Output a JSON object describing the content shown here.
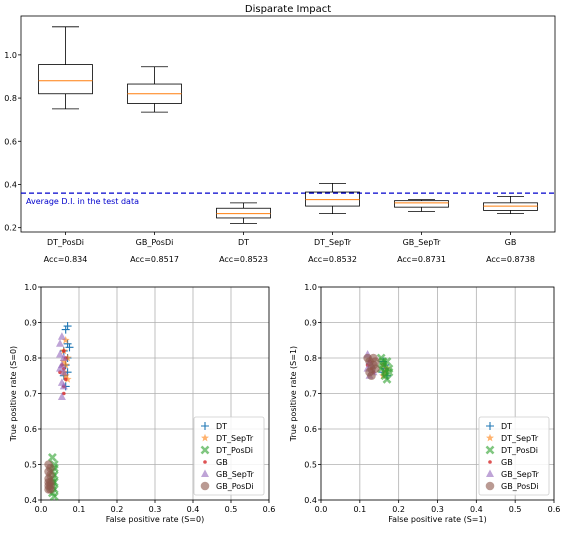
{
  "chart_data": [
    {
      "type": "box",
      "title": "Disparate Impact",
      "categories": [
        "DT_PosDi",
        "GB_PosDi",
        "DT",
        "DT_SepTr",
        "GB_SepTr",
        "GB"
      ],
      "accuracies": [
        "Acc=0.834",
        "Acc=0.8517",
        "Acc=0.8523",
        "Acc=0.8532",
        "Acc=0.8731",
        "Acc=0.8738"
      ],
      "boxes": [
        {
          "whislo": 0.75,
          "q1": 0.82,
          "med": 0.88,
          "q3": 0.955,
          "whishi": 1.13
        },
        {
          "whislo": 0.735,
          "q1": 0.775,
          "med": 0.82,
          "q3": 0.865,
          "whishi": 0.945
        },
        {
          "whislo": 0.22,
          "q1": 0.245,
          "med": 0.265,
          "q3": 0.29,
          "whishi": 0.315
        },
        {
          "whislo": 0.265,
          "q1": 0.3,
          "med": 0.33,
          "q3": 0.365,
          "whishi": 0.405
        },
        {
          "whislo": 0.275,
          "q1": 0.295,
          "med": 0.315,
          "q3": 0.325,
          "whishi": 0.33
        },
        {
          "whislo": 0.265,
          "q1": 0.28,
          "med": 0.3,
          "q3": 0.315,
          "whishi": 0.345
        }
      ],
      "reference_line": {
        "value": 0.36,
        "label": "Average D.I. in the test data",
        "color": "#0000cc"
      },
      "yticks": [
        "0.2",
        "0.4",
        "0.6",
        "0.8",
        "1.0"
      ],
      "ylim": [
        0.18,
        1.18
      ],
      "median_color": "#ff7f0e"
    },
    {
      "type": "scatter",
      "xlabel": "False positive rate (S=0)",
      "ylabel": "True positive rate (S=0)",
      "xlim": [
        0.0,
        0.6
      ],
      "ylim": [
        0.4,
        1.0
      ],
      "xticks": [
        "0.0",
        "0.1",
        "0.2",
        "0.3",
        "0.4",
        "0.5",
        "0.6"
      ],
      "yticks": [
        "0.4",
        "0.5",
        "0.6",
        "0.7",
        "0.8",
        "0.9",
        "1.0"
      ],
      "grid": true,
      "legend_position": "lower-right",
      "series": [
        {
          "name": "DT",
          "color": "#1f77b4",
          "marker": "plus",
          "points": [
            [
              0.07,
              0.89
            ],
            [
              0.065,
              0.88
            ],
            [
              0.075,
              0.83
            ],
            [
              0.06,
              0.82
            ],
            [
              0.07,
              0.8
            ],
            [
              0.065,
              0.78
            ],
            [
              0.07,
              0.76
            ],
            [
              0.06,
              0.75
            ],
            [
              0.065,
              0.72
            ],
            [
              0.07,
              0.84
            ]
          ]
        },
        {
          "name": "DT_SepTr",
          "color": "#ff7f0e",
          "marker": "star",
          "points": [
            [
              0.065,
              0.85
            ],
            [
              0.06,
              0.82
            ],
            [
              0.07,
              0.8
            ],
            [
              0.065,
              0.78
            ],
            [
              0.06,
              0.76
            ],
            [
              0.065,
              0.75
            ],
            [
              0.07,
              0.74
            ],
            [
              0.06,
              0.79
            ]
          ]
        },
        {
          "name": "DT_PosDi",
          "color": "#2ca02c",
          "marker": "x",
          "points": [
            [
              0.03,
              0.52
            ],
            [
              0.035,
              0.5
            ],
            [
              0.03,
              0.48
            ],
            [
              0.035,
              0.47
            ],
            [
              0.03,
              0.46
            ],
            [
              0.035,
              0.45
            ],
            [
              0.03,
              0.44
            ],
            [
              0.035,
              0.43
            ],
            [
              0.03,
              0.42
            ],
            [
              0.035,
              0.41
            ],
            [
              0.03,
              0.45
            ],
            [
              0.035,
              0.49
            ]
          ]
        },
        {
          "name": "GB",
          "color": "#d62728",
          "marker": "dot",
          "points": [
            [
              0.06,
              0.82
            ],
            [
              0.065,
              0.8
            ],
            [
              0.055,
              0.78
            ],
            [
              0.06,
              0.77
            ],
            [
              0.065,
              0.74
            ],
            [
              0.06,
              0.72
            ],
            [
              0.05,
              0.76
            ],
            [
              0.06,
              0.7
            ]
          ]
        },
        {
          "name": "GB_SepTr",
          "color": "#9467bd",
          "marker": "triangle",
          "points": [
            [
              0.055,
              0.86
            ],
            [
              0.05,
              0.84
            ],
            [
              0.06,
              0.8
            ],
            [
              0.055,
              0.78
            ],
            [
              0.05,
              0.77
            ],
            [
              0.06,
              0.76
            ],
            [
              0.055,
              0.73
            ],
            [
              0.06,
              0.72
            ],
            [
              0.055,
              0.69
            ],
            [
              0.05,
              0.81
            ]
          ]
        },
        {
          "name": "GB_PosDi",
          "color": "#8c564b",
          "marker": "circle",
          "points": [
            [
              0.02,
              0.5
            ],
            [
              0.025,
              0.49
            ],
            [
              0.02,
              0.48
            ],
            [
              0.025,
              0.47
            ],
            [
              0.02,
              0.46
            ],
            [
              0.025,
              0.45
            ],
            [
              0.02,
              0.44
            ],
            [
              0.025,
              0.44
            ],
            [
              0.02,
              0.43
            ],
            [
              0.025,
              0.43
            ],
            [
              0.02,
              0.45
            ]
          ]
        }
      ]
    },
    {
      "type": "scatter",
      "xlabel": "False positive rate (S=1)",
      "ylabel": "True positive rate (S=1)",
      "xlim": [
        0.0,
        0.6
      ],
      "ylim": [
        0.4,
        1.0
      ],
      "xticks": [
        "0.0",
        "0.1",
        "0.2",
        "0.3",
        "0.4",
        "0.5",
        "0.6"
      ],
      "yticks": [
        "0.4",
        "0.5",
        "0.6",
        "0.7",
        "0.8",
        "0.9",
        "1.0"
      ],
      "grid": true,
      "legend_position": "lower-right",
      "series": [
        {
          "name": "DT",
          "color": "#1f77b4",
          "marker": "plus",
          "points": [
            [
              0.16,
              0.79
            ],
            [
              0.165,
              0.77
            ],
            [
              0.17,
              0.75
            ],
            [
              0.16,
              0.76
            ],
            [
              0.165,
              0.78
            ]
          ]
        },
        {
          "name": "DT_SepTr",
          "color": "#ff7f0e",
          "marker": "star",
          "points": [
            [
              0.16,
              0.78
            ],
            [
              0.165,
              0.76
            ],
            [
              0.17,
              0.77
            ],
            [
              0.16,
              0.75
            ]
          ]
        },
        {
          "name": "DT_PosDi",
          "color": "#2ca02c",
          "marker": "x",
          "points": [
            [
              0.155,
              0.8
            ],
            [
              0.16,
              0.78
            ],
            [
              0.165,
              0.76
            ],
            [
              0.17,
              0.74
            ],
            [
              0.175,
              0.77
            ],
            [
              0.16,
              0.79
            ],
            [
              0.165,
              0.75
            ],
            [
              0.17,
              0.79
            ],
            [
              0.175,
              0.76
            ],
            [
              0.155,
              0.77
            ]
          ]
        },
        {
          "name": "GB",
          "color": "#d62728",
          "marker": "dot",
          "points": [
            [
              0.125,
              0.79
            ],
            [
              0.13,
              0.77
            ],
            [
              0.12,
              0.78
            ],
            [
              0.135,
              0.76
            ]
          ]
        },
        {
          "name": "GB_SepTr",
          "color": "#9467bd",
          "marker": "triangle",
          "points": [
            [
              0.12,
              0.81
            ],
            [
              0.125,
              0.79
            ],
            [
              0.13,
              0.78
            ],
            [
              0.12,
              0.77
            ],
            [
              0.135,
              0.76
            ],
            [
              0.125,
              0.75
            ]
          ]
        },
        {
          "name": "GB_PosDi",
          "color": "#8c564b",
          "marker": "circle",
          "points": [
            [
              0.12,
              0.8
            ],
            [
              0.125,
              0.79
            ],
            [
              0.13,
              0.77
            ],
            [
              0.125,
              0.76
            ],
            [
              0.135,
              0.78
            ],
            [
              0.14,
              0.79
            ],
            [
              0.13,
              0.75
            ],
            [
              0.14,
              0.77
            ],
            [
              0.135,
              0.8
            ]
          ]
        }
      ]
    }
  ]
}
